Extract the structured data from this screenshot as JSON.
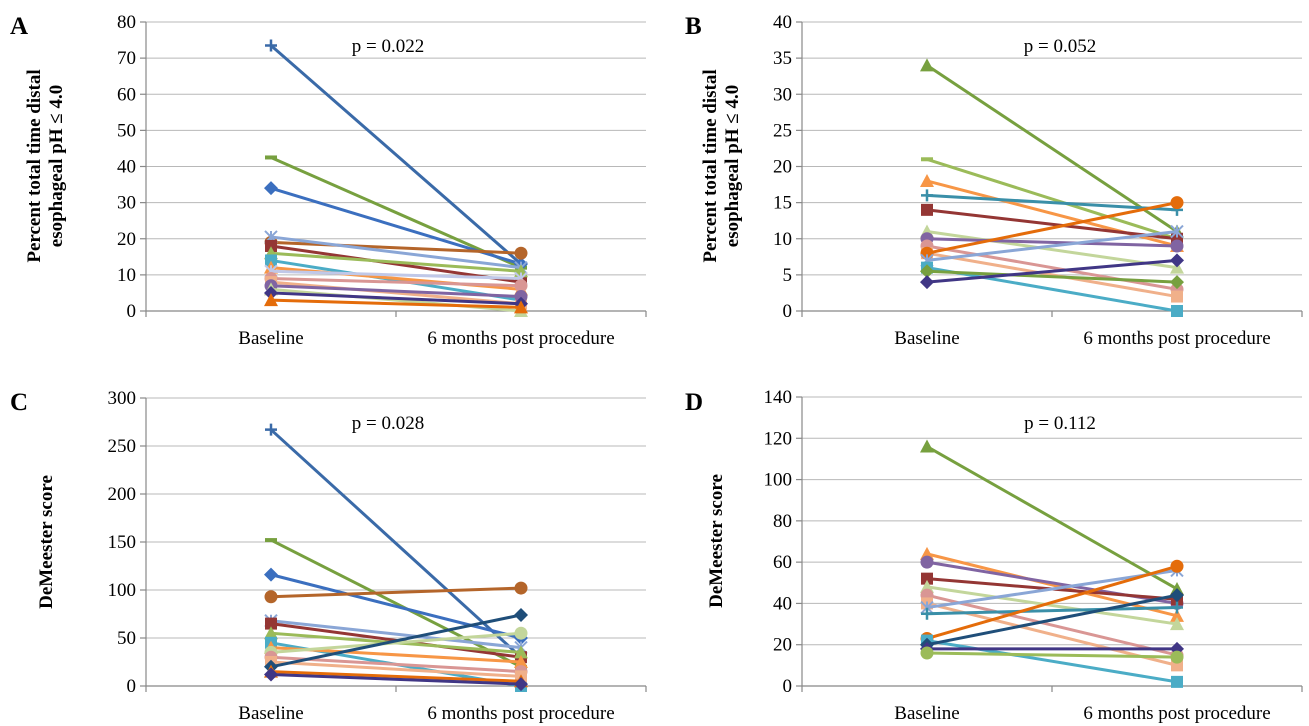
{
  "chart_data": [
    {
      "type": "line",
      "panel": "A",
      "annotation": "p = 0.022",
      "ylabel_lines": [
        "Percent total time distal",
        "esophageal pH ≤ 4.0"
      ],
      "categories": [
        "Baseline",
        "6 months post procedure"
      ],
      "ylim": [
        0,
        80
      ],
      "yticks": [
        0,
        10,
        20,
        30,
        40,
        50,
        60,
        70,
        80
      ],
      "grid": true,
      "series": [
        {
          "values": [
            73.5,
            13
          ],
          "color": "#3a6aa8",
          "marker": "plus"
        },
        {
          "values": [
            42.5,
            12
          ],
          "color": "#77a03f",
          "marker": "dash"
        },
        {
          "values": [
            34,
            13
          ],
          "color": "#3b6fbf",
          "marker": "diamond"
        },
        {
          "values": [
            19,
            16
          ],
          "color": "#b4652a",
          "marker": "circle"
        },
        {
          "values": [
            20.5,
            12
          ],
          "color": "#8aa6d6",
          "marker": "star"
        },
        {
          "values": [
            18,
            8
          ],
          "color": "#943634",
          "marker": "square"
        },
        {
          "values": [
            16,
            11
          ],
          "color": "#9bbb59",
          "marker": "triangle"
        },
        {
          "values": [
            14,
            3
          ],
          "color": "#4bacc6",
          "marker": "square"
        },
        {
          "values": [
            12,
            6
          ],
          "color": "#f79646",
          "marker": "triangle"
        },
        {
          "values": [
            11,
            9
          ],
          "color": "#c0c8e8",
          "marker": "star"
        },
        {
          "values": [
            9,
            7
          ],
          "color": "#d99694",
          "marker": "circle"
        },
        {
          "values": [
            8,
            2
          ],
          "color": "#f0b08a",
          "marker": "square"
        },
        {
          "values": [
            7,
            4
          ],
          "color": "#8064a2",
          "marker": "circle"
        },
        {
          "values": [
            6,
            0
          ],
          "color": "#c3d69b",
          "marker": "triangle"
        },
        {
          "values": [
            5,
            2
          ],
          "color": "#403685",
          "marker": "diamond"
        },
        {
          "values": [
            3,
            1
          ],
          "color": "#e46c0a",
          "marker": "triangle"
        }
      ]
    },
    {
      "type": "line",
      "panel": "B",
      "annotation": "p = 0.052",
      "ylabel_lines": [
        "Percent total time distal",
        "esophageal pH ≤ 4.0"
      ],
      "categories": [
        "Baseline",
        "6 months post procedure"
      ],
      "ylim": [
        0,
        40
      ],
      "yticks": [
        0,
        5,
        10,
        15,
        20,
        25,
        30,
        35,
        40
      ],
      "grid": true,
      "series": [
        {
          "values": [
            34,
            11
          ],
          "color": "#77a03f",
          "marker": "triangle"
        },
        {
          "values": [
            21,
            10
          ],
          "color": "#9bbb59",
          "marker": "dash"
        },
        {
          "values": [
            18,
            9
          ],
          "color": "#f79646",
          "marker": "triangle"
        },
        {
          "values": [
            16,
            14
          ],
          "color": "#3a8fa8",
          "marker": "plus"
        },
        {
          "values": [
            14,
            10
          ],
          "color": "#943634",
          "marker": "square"
        },
        {
          "values": [
            11,
            6
          ],
          "color": "#c3d69b",
          "marker": "triangle"
        },
        {
          "values": [
            10,
            9
          ],
          "color": "#8064a2",
          "marker": "circle"
        },
        {
          "values": [
            9,
            3
          ],
          "color": "#d99694",
          "marker": "circle"
        },
        {
          "values": [
            8,
            2
          ],
          "color": "#f0b08a",
          "marker": "square"
        },
        {
          "values": [
            8,
            15
          ],
          "color": "#e46c0a",
          "marker": "circle"
        },
        {
          "values": [
            7,
            11
          ],
          "color": "#8aa6d6",
          "marker": "star"
        },
        {
          "values": [
            6,
            0
          ],
          "color": "#4bacc6",
          "marker": "square"
        },
        {
          "values": [
            5.5,
            4
          ],
          "color": "#77a03f",
          "marker": "diamond"
        },
        {
          "values": [
            4,
            7
          ],
          "color": "#403685",
          "marker": "diamond"
        }
      ]
    },
    {
      "type": "line",
      "panel": "C",
      "annotation": "p = 0.028",
      "ylabel_lines": [
        "DeMeester score"
      ],
      "categories": [
        "Baseline",
        "6 months post procedure"
      ],
      "ylim": [
        0,
        300
      ],
      "yticks": [
        0,
        50,
        100,
        150,
        200,
        250,
        300
      ],
      "grid": true,
      "series": [
        {
          "values": [
            267,
            30
          ],
          "color": "#3a6aa8",
          "marker": "plus"
        },
        {
          "values": [
            152,
            20
          ],
          "color": "#77a03f",
          "marker": "dash"
        },
        {
          "values": [
            116,
            50
          ],
          "color": "#3b6fbf",
          "marker": "diamond"
        },
        {
          "values": [
            93,
            102
          ],
          "color": "#b4652a",
          "marker": "circle"
        },
        {
          "values": [
            68,
            40
          ],
          "color": "#8aa6d6",
          "marker": "star"
        },
        {
          "values": [
            65,
            30
          ],
          "color": "#943634",
          "marker": "square"
        },
        {
          "values": [
            55,
            35
          ],
          "color": "#9bbb59",
          "marker": "triangle"
        },
        {
          "values": [
            45,
            0
          ],
          "color": "#4bacc6",
          "marker": "square"
        },
        {
          "values": [
            40,
            25
          ],
          "color": "#f79646",
          "marker": "triangle"
        },
        {
          "values": [
            35,
            55
          ],
          "color": "#c3d69b",
          "marker": "circle"
        },
        {
          "values": [
            30,
            15
          ],
          "color": "#d99694",
          "marker": "circle"
        },
        {
          "values": [
            25,
            10
          ],
          "color": "#f0b08a",
          "marker": "square"
        },
        {
          "values": [
            20,
            74
          ],
          "color": "#1f4e79",
          "marker": "diamond"
        },
        {
          "values": [
            15,
            5
          ],
          "color": "#e46c0a",
          "marker": "triangle"
        },
        {
          "values": [
            12,
            2
          ],
          "color": "#403685",
          "marker": "diamond"
        }
      ]
    },
    {
      "type": "line",
      "panel": "D",
      "annotation": "p = 0.112",
      "ylabel_lines": [
        "DeMeester score"
      ],
      "categories": [
        "Baseline",
        "6 months post procedure"
      ],
      "ylim": [
        0,
        140
      ],
      "yticks": [
        0,
        20,
        40,
        60,
        80,
        100,
        120,
        140
      ],
      "grid": true,
      "series": [
        {
          "values": [
            116,
            47
          ],
          "color": "#77a03f",
          "marker": "triangle"
        },
        {
          "values": [
            64,
            34
          ],
          "color": "#f79646",
          "marker": "triangle"
        },
        {
          "values": [
            60,
            40
          ],
          "color": "#8064a2",
          "marker": "circle"
        },
        {
          "values": [
            52,
            42
          ],
          "color": "#943634",
          "marker": "square"
        },
        {
          "values": [
            48,
            30
          ],
          "color": "#c3d69b",
          "marker": "triangle"
        },
        {
          "values": [
            44,
            15
          ],
          "color": "#d99694",
          "marker": "circle"
        },
        {
          "values": [
            40,
            10
          ],
          "color": "#f0b08a",
          "marker": "square"
        },
        {
          "values": [
            38,
            56
          ],
          "color": "#8aa6d6",
          "marker": "star"
        },
        {
          "values": [
            35,
            38
          ],
          "color": "#3a8fa8",
          "marker": "plus"
        },
        {
          "values": [
            23,
            58
          ],
          "color": "#e46c0a",
          "marker": "circle"
        },
        {
          "values": [
            22,
            2
          ],
          "color": "#4bacc6",
          "marker": "square"
        },
        {
          "values": [
            20,
            44
          ],
          "color": "#1f4e79",
          "marker": "diamond"
        },
        {
          "values": [
            18,
            18
          ],
          "color": "#403685",
          "marker": "diamond"
        },
        {
          "values": [
            16,
            14
          ],
          "color": "#9bbb59",
          "marker": "circle"
        }
      ]
    }
  ]
}
